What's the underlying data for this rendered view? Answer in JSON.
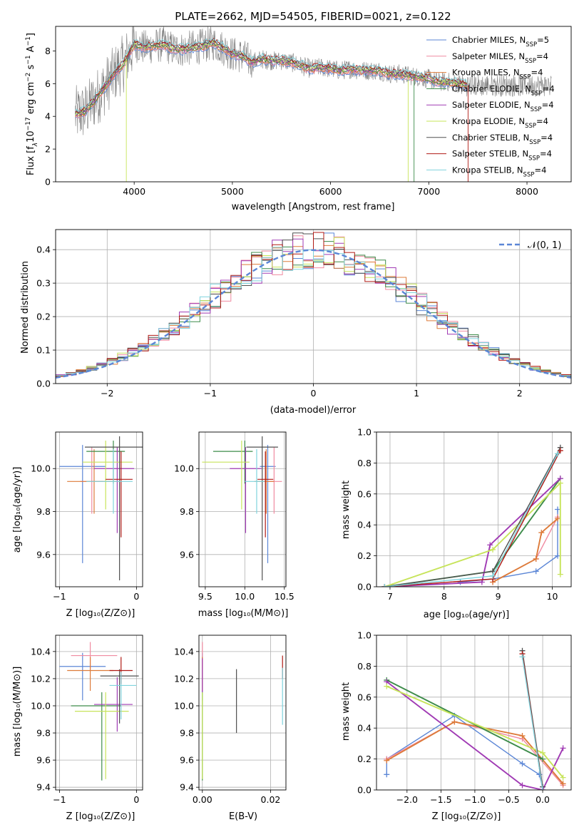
{
  "colors": {
    "chabrier_miles": "#5b86d6",
    "salpeter_miles": "#f08aa0",
    "kroupa_miles": "#dd7b3a",
    "chabrier_elodie": "#3d8c4a",
    "salpeter_elodie": "#a03ab4",
    "kroupa_elodie": "#c7e45a",
    "chabrier_stelib": "#505050",
    "salpeter_stelib": "#b01a14",
    "kroupa_stelib": "#7fd3dd",
    "normal_curve": "#5b86d6",
    "grid": "#b0b0b0",
    "spectrum_gray": "#7f7f7f"
  },
  "chart_data": [
    {
      "id": "spectrum",
      "type": "line",
      "title": "PLATE=2662, MJD=54505, FIBERID=0021, z=0.122",
      "xlabel": "wavelength [Angstrom, rest frame]",
      "ylabel_parts": [
        "Flux [f",
        "λ",
        "10",
        "−17",
        " erg cm",
        "−2",
        " s",
        "−1",
        " A",
        "−1",
        "]"
      ],
      "xlim": [
        3200,
        8450
      ],
      "ylim": [
        0,
        9.5
      ],
      "xticks": [
        4000,
        5000,
        6000,
        7000,
        8000
      ],
      "yticks": [
        0,
        2,
        4,
        6,
        8
      ],
      "grid": false,
      "legend_position": "top-right",
      "legend": [
        {
          "key": "chabrier_miles",
          "label": "Chabrier MILES, N",
          "sub": "SSP",
          "tail": "=5"
        },
        {
          "key": "salpeter_miles",
          "label": "Salpeter MILES, N",
          "sub": "SSP",
          "tail": "=4"
        },
        {
          "key": "kroupa_miles",
          "label": "Kroupa MILES, N",
          "sub": "SSP",
          "tail": "=4"
        },
        {
          "key": "chabrier_elodie",
          "label": "Chabrier ELODIE, N",
          "sub": "SSP",
          "tail": "=4"
        },
        {
          "key": "salpeter_elodie",
          "label": "Salpeter ELODIE, N",
          "sub": "SSP",
          "tail": "=4"
        },
        {
          "key": "kroupa_elodie",
          "label": "Kroupa ELODIE, N",
          "sub": "SSP",
          "tail": "=4"
        },
        {
          "key": "chabrier_stelib",
          "label": "Chabrier STELIB, N",
          "sub": "SSP",
          "tail": "=4"
        },
        {
          "key": "salpeter_stelib",
          "label": "Salpeter STELIB, N",
          "sub": "SSP",
          "tail": "=4"
        },
        {
          "key": "kroupa_stelib",
          "label": "Kroupa STELIB, N",
          "sub": "SSP",
          "tail": "=4"
        }
      ],
      "model_curve": {
        "x": [
          3400,
          3500,
          3600,
          3700,
          3800,
          3900,
          4000,
          4100,
          4200,
          4300,
          4400,
          4500,
          4600,
          4700,
          4800,
          4900,
          5000,
          5100,
          5200,
          5300,
          5400,
          5500,
          5600,
          5700,
          5800,
          5900,
          6000,
          6100,
          6200,
          6300,
          6400,
          6500,
          6600,
          6700,
          6800,
          6900,
          7000,
          7100,
          7200,
          7300,
          7400
        ],
        "y": [
          4.1,
          4.3,
          5.0,
          5.8,
          6.6,
          7.3,
          8.4,
          8.2,
          8.3,
          8.4,
          8.1,
          8.1,
          8.2,
          8.3,
          8.5,
          8.2,
          7.8,
          7.7,
          7.3,
          7.5,
          7.4,
          7.4,
          7.3,
          7.1,
          6.9,
          7.0,
          6.9,
          6.8,
          6.9,
          6.8,
          6.8,
          6.8,
          6.6,
          6.6,
          6.5,
          6.4,
          6.3,
          6.1,
          6.1,
          6.0,
          5.9
        ]
      }
    },
    {
      "id": "residuals",
      "type": "histogram",
      "xlabel": "(data-model)/error",
      "ylabel": "Normed distribution",
      "xlim": [
        -2.5,
        2.5
      ],
      "ylim": [
        0,
        0.46
      ],
      "xticks": [
        -2,
        -1,
        0,
        1,
        2
      ],
      "yticks": [
        0.0,
        0.1,
        0.2,
        0.3,
        0.4
      ],
      "grid": true,
      "legend_position": "top-right",
      "legend": [
        {
          "label": "𝒩(0, 1)"
        }
      ],
      "bin_width": 0.1
    },
    {
      "id": "age_vs_Z",
      "type": "scatter",
      "xlabel": "Z [log₁₀(Z/Z⊙)]",
      "ylabel": "age  [log₁₀(age/yr)]",
      "xlim": [
        -1.05,
        0.08
      ],
      "ylim": [
        9.45,
        10.17
      ],
      "xticks": [
        -1,
        0
      ],
      "yticks": [
        9.6,
        9.8,
        10.0
      ],
      "grid": true,
      "errorbars": [
        {
          "key": "chabrier_miles",
          "x": -0.7,
          "y": 10.01,
          "xerr": [
            0.3,
            0.3
          ],
          "yerr": [
            0.45,
            0.1
          ]
        },
        {
          "key": "salpeter_miles",
          "x": -0.58,
          "y": 9.94,
          "xerr": [
            0.15,
            0.15
          ],
          "yerr": [
            0.15,
            0.16
          ]
        },
        {
          "key": "kroupa_miles",
          "x": -0.55,
          "y": 9.94,
          "xerr": [
            0.35,
            0.32
          ],
          "yerr": [
            0.15,
            0.15
          ]
        },
        {
          "key": "chabrier_elodie",
          "x": -0.3,
          "y": 10.08,
          "xerr": [
            0.35,
            0.15
          ],
          "yerr": [
            0.15,
            0.05
          ]
        },
        {
          "key": "salpeter_elodie",
          "x": -0.25,
          "y": 10.0,
          "xerr": [
            0.3,
            0.22
          ],
          "yerr": [
            0.3,
            0.1
          ]
        },
        {
          "key": "kroupa_elodie",
          "x": -0.4,
          "y": 10.03,
          "xerr": [
            0.3,
            0.35
          ],
          "yerr": [
            0.22,
            0.1
          ]
        },
        {
          "key": "chabrier_stelib",
          "x": -0.22,
          "y": 10.1,
          "xerr": [
            0.45,
            0.3
          ],
          "yerr": [
            0.62,
            0.05
          ]
        },
        {
          "key": "salpeter_stelib",
          "x": -0.2,
          "y": 9.95,
          "xerr": [
            0.2,
            0.15
          ],
          "yerr": [
            0.27,
            0.13
          ]
        },
        {
          "key": "kroupa_stelib",
          "x": -0.3,
          "y": 9.94,
          "xerr": [
            0.35,
            0.25
          ],
          "yerr": [
            0.15,
            0.15
          ]
        }
      ]
    },
    {
      "id": "age_vs_mass",
      "type": "scatter",
      "xlabel": "mass [log₁₀(M/M⊙)]",
      "xlim": [
        9.42,
        10.52
      ],
      "ylim": [
        9.45,
        10.17
      ],
      "xticks": [
        9.5,
        10.0,
        10.5
      ],
      "yticks": [
        9.6,
        9.8,
        10.0
      ],
      "grid": true,
      "errorbars": [
        {
          "key": "chabrier_miles",
          "x": 10.29,
          "y": 10.01,
          "xerr": [
            0.1,
            0.1
          ],
          "yerr": [
            0.45,
            0.1
          ]
        },
        {
          "key": "salpeter_miles",
          "x": 10.37,
          "y": 9.94,
          "xerr": [
            0.1,
            0.1
          ],
          "yerr": [
            0.15,
            0.16
          ]
        },
        {
          "key": "kroupa_miles",
          "x": 10.27,
          "y": 9.94,
          "xerr": [
            0.15,
            0.1
          ],
          "yerr": [
            0.15,
            0.15
          ]
        },
        {
          "key": "chabrier_elodie",
          "x": 10.0,
          "y": 10.08,
          "xerr": [
            0.4,
            0.1
          ],
          "yerr": [
            0.15,
            0.05
          ]
        },
        {
          "key": "salpeter_elodie",
          "x": 10.01,
          "y": 10.0,
          "xerr": [
            0.2,
            0.2
          ],
          "yerr": [
            0.3,
            0.1
          ]
        },
        {
          "key": "kroupa_elodie",
          "x": 9.96,
          "y": 10.03,
          "xerr": [
            0.5,
            0.1
          ],
          "yerr": [
            0.22,
            0.1
          ]
        },
        {
          "key": "chabrier_stelib",
          "x": 10.22,
          "y": 10.1,
          "xerr": [
            0.2,
            0.2
          ],
          "yerr": [
            0.62,
            0.05
          ]
        },
        {
          "key": "salpeter_stelib",
          "x": 10.26,
          "y": 9.95,
          "xerr": [
            0.1,
            0.1
          ],
          "yerr": [
            0.27,
            0.13
          ]
        },
        {
          "key": "kroupa_stelib",
          "x": 10.15,
          "y": 9.94,
          "xerr": [
            0.15,
            0.1
          ],
          "yerr": [
            0.15,
            0.15
          ]
        }
      ]
    },
    {
      "id": "weight_vs_age",
      "type": "line",
      "xlabel": "age  [log₁₀(age/yr)]",
      "ylabel": "mass weight",
      "xlim": [
        6.75,
        10.35
      ],
      "ylim": [
        0,
        1.0
      ],
      "xticks": [
        7,
        8,
        9,
        10
      ],
      "yticks": [
        0.0,
        0.2,
        0.4,
        0.6,
        0.8,
        1.0
      ],
      "grid": true,
      "series": [
        {
          "key": "chabrier_miles",
          "x": [
            8.3,
            8.9,
            9.7,
            10.1,
            10.1
          ],
          "y": [
            0.03,
            0.05,
            0.1,
            0.2,
            0.5
          ]
        },
        {
          "key": "salpeter_miles",
          "x": [
            8.9,
            9.7,
            10.1
          ],
          "y": [
            0.03,
            0.18,
            0.45
          ]
        },
        {
          "key": "kroupa_miles",
          "x": [
            8.9,
            9.7,
            9.8,
            10.1
          ],
          "y": [
            0.03,
            0.18,
            0.35,
            0.44
          ]
        },
        {
          "key": "chabrier_elodie",
          "x": [
            6.9,
            8.9,
            10.15
          ],
          "y": [
            0.0,
            0.1,
            0.7
          ]
        },
        {
          "key": "salpeter_elodie",
          "x": [
            6.9,
            8.7,
            8.85,
            10.15
          ],
          "y": [
            0.0,
            0.03,
            0.27,
            0.7
          ]
        },
        {
          "key": "kroupa_elodie",
          "x": [
            6.9,
            8.9,
            10.15,
            10.15
          ],
          "y": [
            0.0,
            0.24,
            0.67,
            0.08
          ]
        },
        {
          "key": "chabrier_stelib",
          "x": [
            6.9,
            8.9,
            10.15
          ],
          "y": [
            0.0,
            0.1,
            0.9
          ]
        },
        {
          "key": "salpeter_stelib",
          "x": [
            6.9,
            8.9,
            10.15
          ],
          "y": [
            0.0,
            0.05,
            0.88
          ]
        },
        {
          "key": "kroupa_stelib",
          "x": [
            6.9,
            8.9,
            10.1
          ],
          "y": [
            0.0,
            0.07,
            0.86
          ]
        }
      ]
    },
    {
      "id": "mass_vs_Z",
      "type": "scatter",
      "xlabel": "Z [log₁₀(Z/Z⊙)]",
      "ylabel": "mass [log₁₀(M/M⊙)]",
      "xlim": [
        -1.05,
        0.08
      ],
      "ylim": [
        9.38,
        10.52
      ],
      "xticks": [
        -1,
        0
      ],
      "yticks": [
        9.4,
        9.6,
        9.8,
        10.0,
        10.2,
        10.4
      ],
      "grid": true,
      "errorbars": [
        {
          "key": "chabrier_miles",
          "x": -0.7,
          "y": 10.29,
          "xerr": [
            0.3,
            0.3
          ],
          "yerr": [
            0.25,
            0.1
          ]
        },
        {
          "key": "salpeter_miles",
          "x": -0.6,
          "y": 10.37,
          "xerr": [
            0.25,
            0.35
          ],
          "yerr": [
            0.1,
            0.1
          ]
        },
        {
          "key": "kroupa_miles",
          "x": -0.6,
          "y": 10.26,
          "xerr": [
            0.3,
            0.3
          ],
          "yerr": [
            0.15,
            0.1
          ]
        },
        {
          "key": "chabrier_elodie",
          "x": -0.45,
          "y": 10.0,
          "xerr": [
            0.4,
            0.25
          ],
          "yerr": [
            0.55,
            0.1
          ]
        },
        {
          "key": "salpeter_elodie",
          "x": -0.25,
          "y": 10.01,
          "xerr": [
            0.3,
            0.2
          ],
          "yerr": [
            0.2,
            0.2
          ]
        },
        {
          "key": "kroupa_elodie",
          "x": -0.4,
          "y": 9.96,
          "xerr": [
            0.4,
            0.3
          ],
          "yerr": [
            0.5,
            0.14
          ]
        },
        {
          "key": "chabrier_stelib",
          "x": -0.22,
          "y": 10.22,
          "xerr": [
            0.25,
            0.25
          ],
          "yerr": [
            0.35,
            0.05
          ]
        },
        {
          "key": "salpeter_stelib",
          "x": -0.2,
          "y": 10.26,
          "xerr": [
            0.15,
            0.15
          ],
          "yerr": [
            0.1,
            0.1
          ]
        },
        {
          "key": "kroupa_stelib",
          "x": -0.2,
          "y": 10.15,
          "xerr": [
            0.15,
            0.2
          ],
          "yerr": [
            0.25,
            0.1
          ]
        }
      ]
    },
    {
      "id": "mass_vs_EBV",
      "type": "scatter",
      "xlabel": "E(B-V)",
      "xlim": [
        -0.001,
        0.0245
      ],
      "ylim": [
        9.38,
        10.52
      ],
      "xticks": [
        0.0,
        0.02
      ],
      "yticks": [
        9.4,
        9.6,
        9.8,
        10.0,
        10.2,
        10.4
      ],
      "grid": true,
      "errorbars": [
        {
          "key": "chabrier_miles",
          "x": 0.0,
          "y": 10.29,
          "xerr": [
            0,
            0
          ],
          "yerr": [
            0.25,
            0.1
          ]
        },
        {
          "key": "salpeter_miles",
          "x": 0.0,
          "y": 10.37,
          "xerr": [
            0,
            0
          ],
          "yerr": [
            0.1,
            0.1
          ]
        },
        {
          "key": "kroupa_miles",
          "x": 0.0,
          "y": 10.26,
          "xerr": [
            0,
            0
          ],
          "yerr": [
            0.15,
            0.1
          ]
        },
        {
          "key": "chabrier_elodie",
          "x": 0.0,
          "y": 10.0,
          "xerr": [
            0,
            0
          ],
          "yerr": [
            0.55,
            0.1
          ]
        },
        {
          "key": "salpeter_elodie",
          "x": 0.0,
          "y": 10.25,
          "xerr": [
            0,
            0
          ],
          "yerr": [
            0.15,
            0.1
          ]
        },
        {
          "key": "kroupa_elodie",
          "x": 0.0,
          "y": 9.96,
          "xerr": [
            0,
            0
          ],
          "yerr": [
            0.5,
            0.14
          ]
        },
        {
          "key": "chabrier_stelib",
          "x": 0.01,
          "y": 10.03,
          "xerr": [
            0,
            0
          ],
          "yerr": [
            0.23,
            0.24
          ]
        },
        {
          "key": "salpeter_stelib",
          "x": 0.0235,
          "y": 10.28,
          "xerr": [
            0,
            0
          ],
          "yerr": [
            0.08,
            0.09
          ]
        },
        {
          "key": "kroupa_stelib",
          "x": 0.0235,
          "y": 10.06,
          "xerr": [
            0,
            0
          ],
          "yerr": [
            0.2,
            0.22
          ]
        }
      ]
    },
    {
      "id": "weight_vs_Z",
      "type": "line",
      "xlabel": "Z [log₁₀(Z/Z⊙)]",
      "ylabel": "mass weight",
      "xlim": [
        -2.45,
        0.42
      ],
      "ylim": [
        0,
        1.0
      ],
      "xticks": [
        -2.0,
        -1.5,
        -1.0,
        -0.5,
        0.0
      ],
      "yticks": [
        0.0,
        0.2,
        0.4,
        0.6,
        0.8,
        1.0
      ],
      "grid": true,
      "series": [
        {
          "key": "chabrier_miles",
          "x": [
            -2.3,
            -2.3,
            -1.3,
            -0.3,
            -0.05,
            0.0
          ],
          "y": [
            0.1,
            0.2,
            0.48,
            0.17,
            0.1,
            0.02
          ]
        },
        {
          "key": "salpeter_miles",
          "x": [
            -2.3,
            -1.3,
            -0.3,
            0.3
          ],
          "y": [
            0.2,
            0.44,
            0.33,
            0.03
          ]
        },
        {
          "key": "kroupa_miles",
          "x": [
            -2.3,
            -1.3,
            -0.3,
            0.3
          ],
          "y": [
            0.19,
            0.44,
            0.35,
            0.04
          ]
        },
        {
          "key": "chabrier_elodie",
          "x": [
            -2.3,
            0.0
          ],
          "y": [
            0.71,
            0.2
          ]
        },
        {
          "key": "salpeter_elodie",
          "x": [
            -2.3,
            -0.3,
            0.0,
            0.3
          ],
          "y": [
            0.7,
            0.03,
            0.0,
            0.27
          ]
        },
        {
          "key": "kroupa_elodie",
          "x": [
            -2.3,
            0.0,
            0.3
          ],
          "y": [
            0.67,
            0.24,
            0.08
          ]
        },
        {
          "key": "chabrier_stelib",
          "x": [
            -0.3,
            0.0
          ],
          "y": [
            0.9,
            0.02
          ]
        },
        {
          "key": "salpeter_stelib",
          "x": [
            -0.3,
            0.0
          ],
          "y": [
            0.88,
            0.0
          ]
        },
        {
          "key": "kroupa_stelib",
          "x": [
            -0.3,
            0.0
          ],
          "y": [
            0.86,
            0.0
          ]
        }
      ]
    }
  ]
}
